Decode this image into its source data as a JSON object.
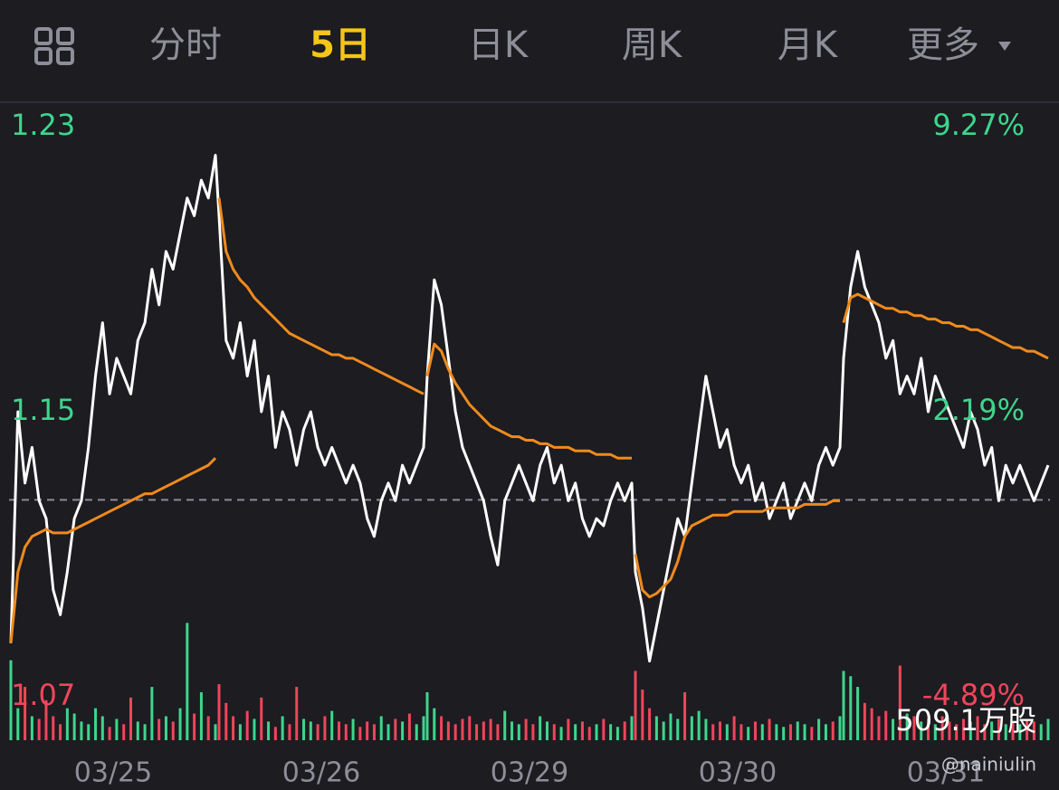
{
  "tabs": [
    "分时",
    "5日",
    "日K",
    "周K",
    "月K",
    "更多"
  ],
  "active_tab": 1,
  "watermark": "@nainiulin",
  "chart_data": {
    "type": "line",
    "categories": [
      "03/25",
      "03/26",
      "03/29",
      "03/30",
      "03/31"
    ],
    "ylim": [
      1.07,
      1.23
    ],
    "yticks": [
      1.23,
      1.15,
      1.07
    ],
    "y2lim": [
      -4.89,
      9.27
    ],
    "y2ticks": [
      {
        "value": 9.27,
        "label": "9.27%"
      },
      {
        "value": 2.19,
        "label": "2.19%"
      },
      {
        "value": -4.89,
        "label": "-4.89%"
      }
    ],
    "series": [
      {
        "color": "#ffffff",
        "values": [
          [
            1.085,
            1.15,
            1.13,
            1.14,
            1.125,
            1.12,
            1.1,
            1.093,
            1.105,
            1.12,
            1.125,
            1.14,
            1.16,
            1.175,
            1.155,
            1.165,
            1.16,
            1.155,
            1.17,
            1.175,
            1.19,
            1.18,
            1.195,
            1.19,
            1.2,
            1.21,
            1.205,
            1.215,
            1.21,
            1.222
          ],
          [
            1.205,
            1.17,
            1.165,
            1.175,
            1.16,
            1.17,
            1.15,
            1.16,
            1.14,
            1.15,
            1.145,
            1.135,
            1.145,
            1.15,
            1.14,
            1.135,
            1.14,
            1.135,
            1.13,
            1.135,
            1.13,
            1.12,
            1.115,
            1.125,
            1.13,
            1.125,
            1.135,
            1.13,
            1.135,
            1.14
          ],
          [
            1.16,
            1.187,
            1.18,
            1.165,
            1.15,
            1.14,
            1.135,
            1.13,
            1.125,
            1.115,
            1.107,
            1.125,
            1.13,
            1.135,
            1.13,
            1.125,
            1.135,
            1.14,
            1.13,
            1.135,
            1.125,
            1.13,
            1.12,
            1.115,
            1.12,
            1.118,
            1.125,
            1.13,
            1.125,
            1.13
          ],
          [
            1.105,
            1.095,
            1.08,
            1.09,
            1.1,
            1.11,
            1.12,
            1.115,
            1.13,
            1.145,
            1.16,
            1.15,
            1.14,
            1.145,
            1.135,
            1.13,
            1.135,
            1.125,
            1.13,
            1.12,
            1.125,
            1.13,
            1.12,
            1.125,
            1.13,
            1.125,
            1.135,
            1.14,
            1.135,
            1.14
          ],
          [
            1.165,
            1.185,
            1.195,
            1.185,
            1.18,
            1.175,
            1.165,
            1.17,
            1.155,
            1.16,
            1.155,
            1.165,
            1.15,
            1.16,
            1.155,
            1.15,
            1.145,
            1.14,
            1.15,
            1.145,
            1.135,
            1.14,
            1.125,
            1.135,
            1.13,
            1.135,
            1.13,
            1.125,
            1.13,
            1.135
          ]
        ]
      },
      {
        "color": "#f08a1c",
        "values": [
          [
            1.085,
            1.105,
            1.112,
            1.115,
            1.116,
            1.117,
            1.116,
            1.116,
            1.116,
            1.117,
            1.118,
            1.119,
            1.12,
            1.121,
            1.122,
            1.123,
            1.124,
            1.125,
            1.126,
            1.127,
            1.127,
            1.128,
            1.129,
            1.13,
            1.131,
            1.132,
            1.133,
            1.134,
            1.135,
            1.137
          ],
          [
            1.21,
            1.195,
            1.19,
            1.187,
            1.185,
            1.182,
            1.18,
            1.178,
            1.176,
            1.174,
            1.172,
            1.171,
            1.17,
            1.169,
            1.168,
            1.167,
            1.166,
            1.166,
            1.165,
            1.165,
            1.164,
            1.163,
            1.162,
            1.161,
            1.16,
            1.159,
            1.158,
            1.157,
            1.156,
            1.155
          ],
          [
            1.16,
            1.169,
            1.167,
            1.162,
            1.158,
            1.155,
            1.152,
            1.15,
            1.148,
            1.146,
            1.145,
            1.144,
            1.143,
            1.143,
            1.142,
            1.142,
            1.141,
            1.141,
            1.14,
            1.14,
            1.14,
            1.139,
            1.139,
            1.139,
            1.138,
            1.138,
            1.138,
            1.137,
            1.137,
            1.137
          ],
          [
            1.11,
            1.1,
            1.098,
            1.099,
            1.101,
            1.103,
            1.108,
            1.115,
            1.118,
            1.119,
            1.12,
            1.121,
            1.121,
            1.121,
            1.122,
            1.122,
            1.122,
            1.122,
            1.122,
            1.123,
            1.123,
            1.123,
            1.123,
            1.123,
            1.124,
            1.124,
            1.124,
            1.124,
            1.125,
            1.125
          ],
          [
            1.175,
            1.182,
            1.183,
            1.182,
            1.181,
            1.18,
            1.179,
            1.179,
            1.178,
            1.178,
            1.177,
            1.177,
            1.176,
            1.176,
            1.175,
            1.175,
            1.174,
            1.174,
            1.173,
            1.173,
            1.172,
            1.171,
            1.17,
            1.169,
            1.168,
            1.168,
            1.167,
            1.167,
            1.166,
            1.165
          ]
        ]
      }
    ],
    "volume": [
      [
        300,
        120,
        200,
        90,
        80,
        150,
        90,
        60,
        120,
        100,
        70,
        60,
        120,
        90,
        50,
        80,
        60,
        160,
        70,
        60,
        200,
        80,
        90,
        70,
        120,
        440,
        100,
        180,
        90,
        60
      ],
      [
        210,
        140,
        90,
        60,
        110,
        80,
        160,
        70,
        50,
        90,
        60,
        200,
        80,
        70,
        60,
        90,
        110,
        70,
        60,
        80,
        50,
        70,
        60,
        90,
        60,
        80,
        70,
        100,
        60,
        90
      ],
      [
        180,
        120,
        90,
        70,
        60,
        80,
        90,
        60,
        70,
        80,
        60,
        110,
        70,
        60,
        80,
        60,
        90,
        70,
        60,
        50,
        80,
        60,
        70,
        50,
        60,
        80,
        60,
        50,
        70,
        90
      ],
      [
        260,
        190,
        120,
        90,
        70,
        100,
        80,
        180,
        90,
        110,
        80,
        60,
        70,
        60,
        90,
        60,
        50,
        70,
        60,
        80,
        60,
        50,
        60,
        70,
        60,
        50,
        80,
        60,
        70,
        90
      ],
      [
        260,
        240,
        200,
        140,
        120,
        90,
        110,
        80,
        280,
        100,
        90,
        70,
        80,
        60,
        90,
        70,
        60,
        80,
        70,
        90,
        60,
        70,
        80,
        60,
        70,
        60,
        80,
        70,
        60,
        80
      ]
    ],
    "vlim": [
      0,
      509.1
    ],
    "vticks": [
      {
        "value": 509.1,
        "label": "509.1万股"
      }
    ]
  }
}
